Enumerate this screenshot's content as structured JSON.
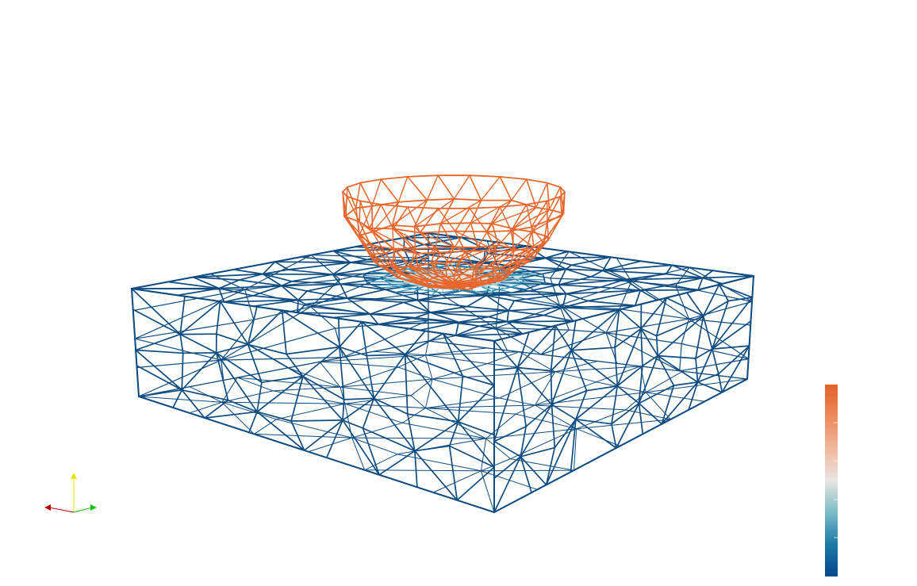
{
  "scene": {
    "background": "#ffffff",
    "block_color": "#0f4c81",
    "bowl_color": "#e8672d",
    "contact_colors": [
      "#0f4c81",
      "#2a8ab0",
      "#9fd3dd",
      "#e4e0dc"
    ]
  },
  "colorbar": {
    "colors_bottom_to_top": [
      "#03478a",
      "#1a7aa6",
      "#7bbcc6",
      "#e9e5e2",
      "#f1b79c",
      "#ec8a5a",
      "#e4612a"
    ]
  },
  "axes_widget": {
    "x_color": "#b40000",
    "y_color": "#e6e600",
    "z_color": "#18c018"
  }
}
